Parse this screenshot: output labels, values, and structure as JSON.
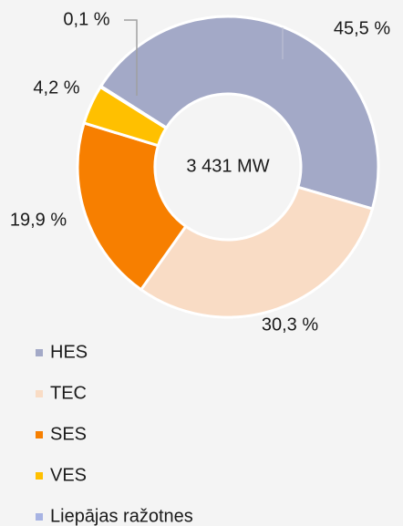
{
  "chart_data": {
    "type": "donut",
    "categories": [
      "HES",
      "TEC",
      "SES",
      "VES",
      "Liepājas ražotnes"
    ],
    "values": [
      45.5,
      30.3,
      19.9,
      4.2,
      0.1
    ],
    "value_labels": [
      "45,5 %",
      "30,3 %",
      "19,9 %",
      "4,2 %",
      "0,1 %"
    ],
    "colors": [
      "#a3a9c7",
      "#f9dcc5",
      "#f77f00",
      "#ffc000",
      "#a7b3e3"
    ],
    "center_label": "3 431 MW",
    "legend": "bottom-left"
  }
}
